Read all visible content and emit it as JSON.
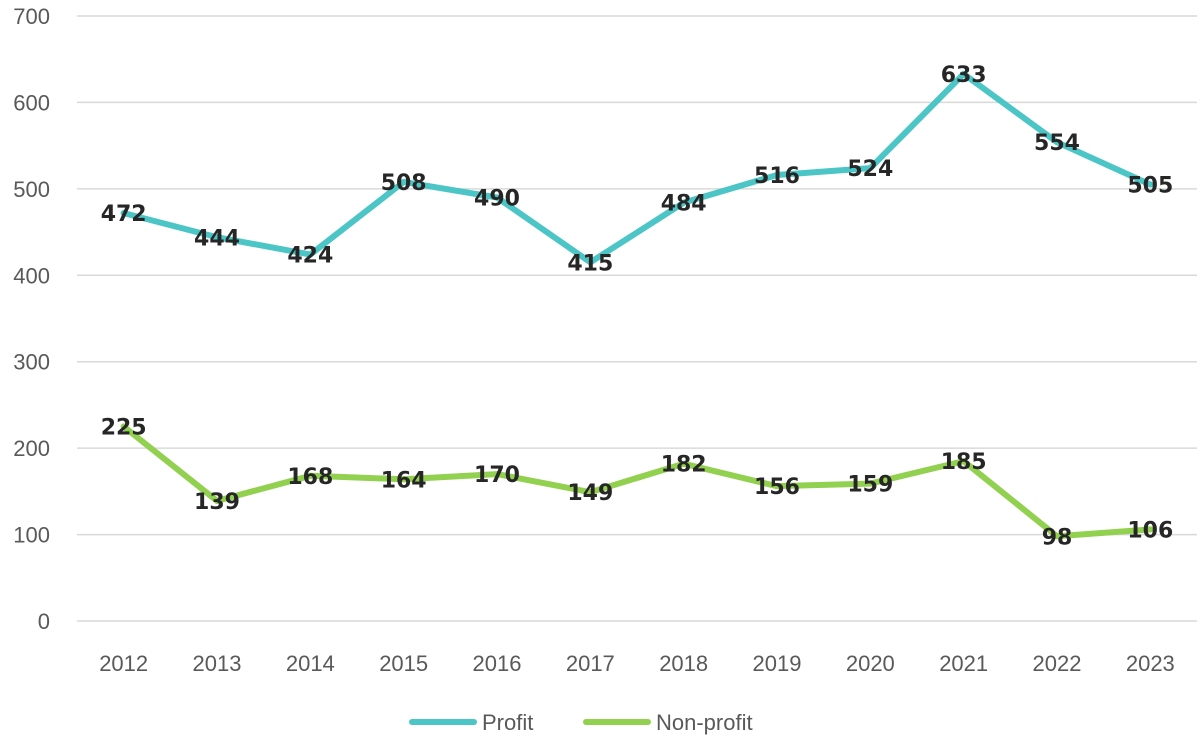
{
  "chart_data": {
    "type": "line",
    "title": "",
    "xlabel": "",
    "ylabel": "",
    "ylim": [
      0,
      700
    ],
    "y_ticks": [
      0,
      100,
      200,
      300,
      400,
      500,
      600,
      700
    ],
    "categories": [
      "2012",
      "2013",
      "2014",
      "2015",
      "2016",
      "2017",
      "2018",
      "2019",
      "2020",
      "2021",
      "2022",
      "2023"
    ],
    "grid": true,
    "legend_position": "bottom",
    "series": [
      {
        "name": "Profit",
        "color": "#4BC5C5",
        "values": [
          472,
          444,
          424,
          508,
          490,
          415,
          484,
          516,
          524,
          633,
          554,
          505
        ]
      },
      {
        "name": "Non-profit",
        "color": "#92D050",
        "values": [
          225,
          139,
          168,
          164,
          170,
          149,
          182,
          156,
          159,
          185,
          98,
          106
        ]
      }
    ]
  }
}
